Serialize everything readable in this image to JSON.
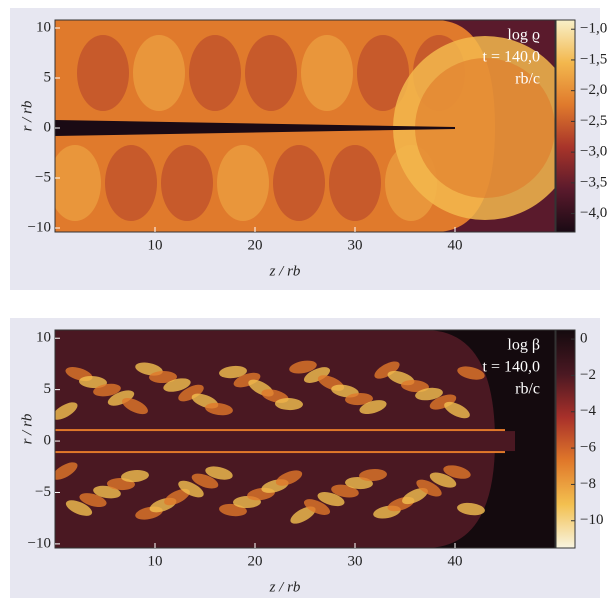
{
  "chart_data": [
    {
      "type": "heatmap",
      "annotations": [
        "log ϱ",
        "t = 140,0",
        "rb/c"
      ],
      "xlabel": "z / rb",
      "ylabel": "r / rb",
      "xlim": [
        0,
        50
      ],
      "xticks": [
        10,
        20,
        30,
        40
      ],
      "ylim": [
        -10.4,
        10.8
      ],
      "yticks": [
        10,
        5,
        0,
        {
          "value": -5,
          "label": "−5"
        },
        {
          "value": -10,
          "label": "−10"
        }
      ],
      "colorbar": {
        "lim": [
          -4.3,
          -0.85
        ],
        "ticks": [
          {
            "value": -1.0,
            "label": "−1,0"
          },
          {
            "value": -1.5,
            "label": "−1,5"
          },
          {
            "value": -2.0,
            "label": "−2,0"
          },
          {
            "value": -2.5,
            "label": "−2,5"
          },
          {
            "value": -3.0,
            "label": "−3,0"
          },
          {
            "value": -3.5,
            "label": "−3,5"
          },
          {
            "value": -4.0,
            "label": "−4,0"
          }
        ],
        "colors": [
          "#1a0a14",
          "#5a1a2c",
          "#a8342a",
          "#e07a2c",
          "#f3b84e",
          "#f8f0c8"
        ]
      }
    },
    {
      "type": "heatmap",
      "annotations": [
        "log β",
        "t = 140,0",
        "rb/c"
      ],
      "xlabel": "z / rb",
      "ylabel": "r / rb",
      "xlim": [
        0,
        50
      ],
      "xticks": [
        10,
        20,
        30,
        40
      ],
      "ylim": [
        -10.4,
        10.8
      ],
      "yticks": [
        10,
        5,
        0,
        {
          "value": -5,
          "label": "−5"
        },
        {
          "value": -10,
          "label": "−10"
        }
      ],
      "colorbar": {
        "lim": [
          -11.5,
          0.5
        ],
        "ticks": [
          0,
          {
            "value": -2,
            "label": "−2"
          },
          {
            "value": -4,
            "label": "−4"
          },
          {
            "value": -6,
            "label": "−6"
          },
          {
            "value": -8,
            "label": "−8"
          },
          {
            "value": -10,
            "label": "−10"
          }
        ],
        "colors": [
          "#f8f4e0",
          "#f3c050",
          "#e0782a",
          "#a8302a",
          "#4a1822",
          "#140a0e"
        ]
      }
    }
  ]
}
